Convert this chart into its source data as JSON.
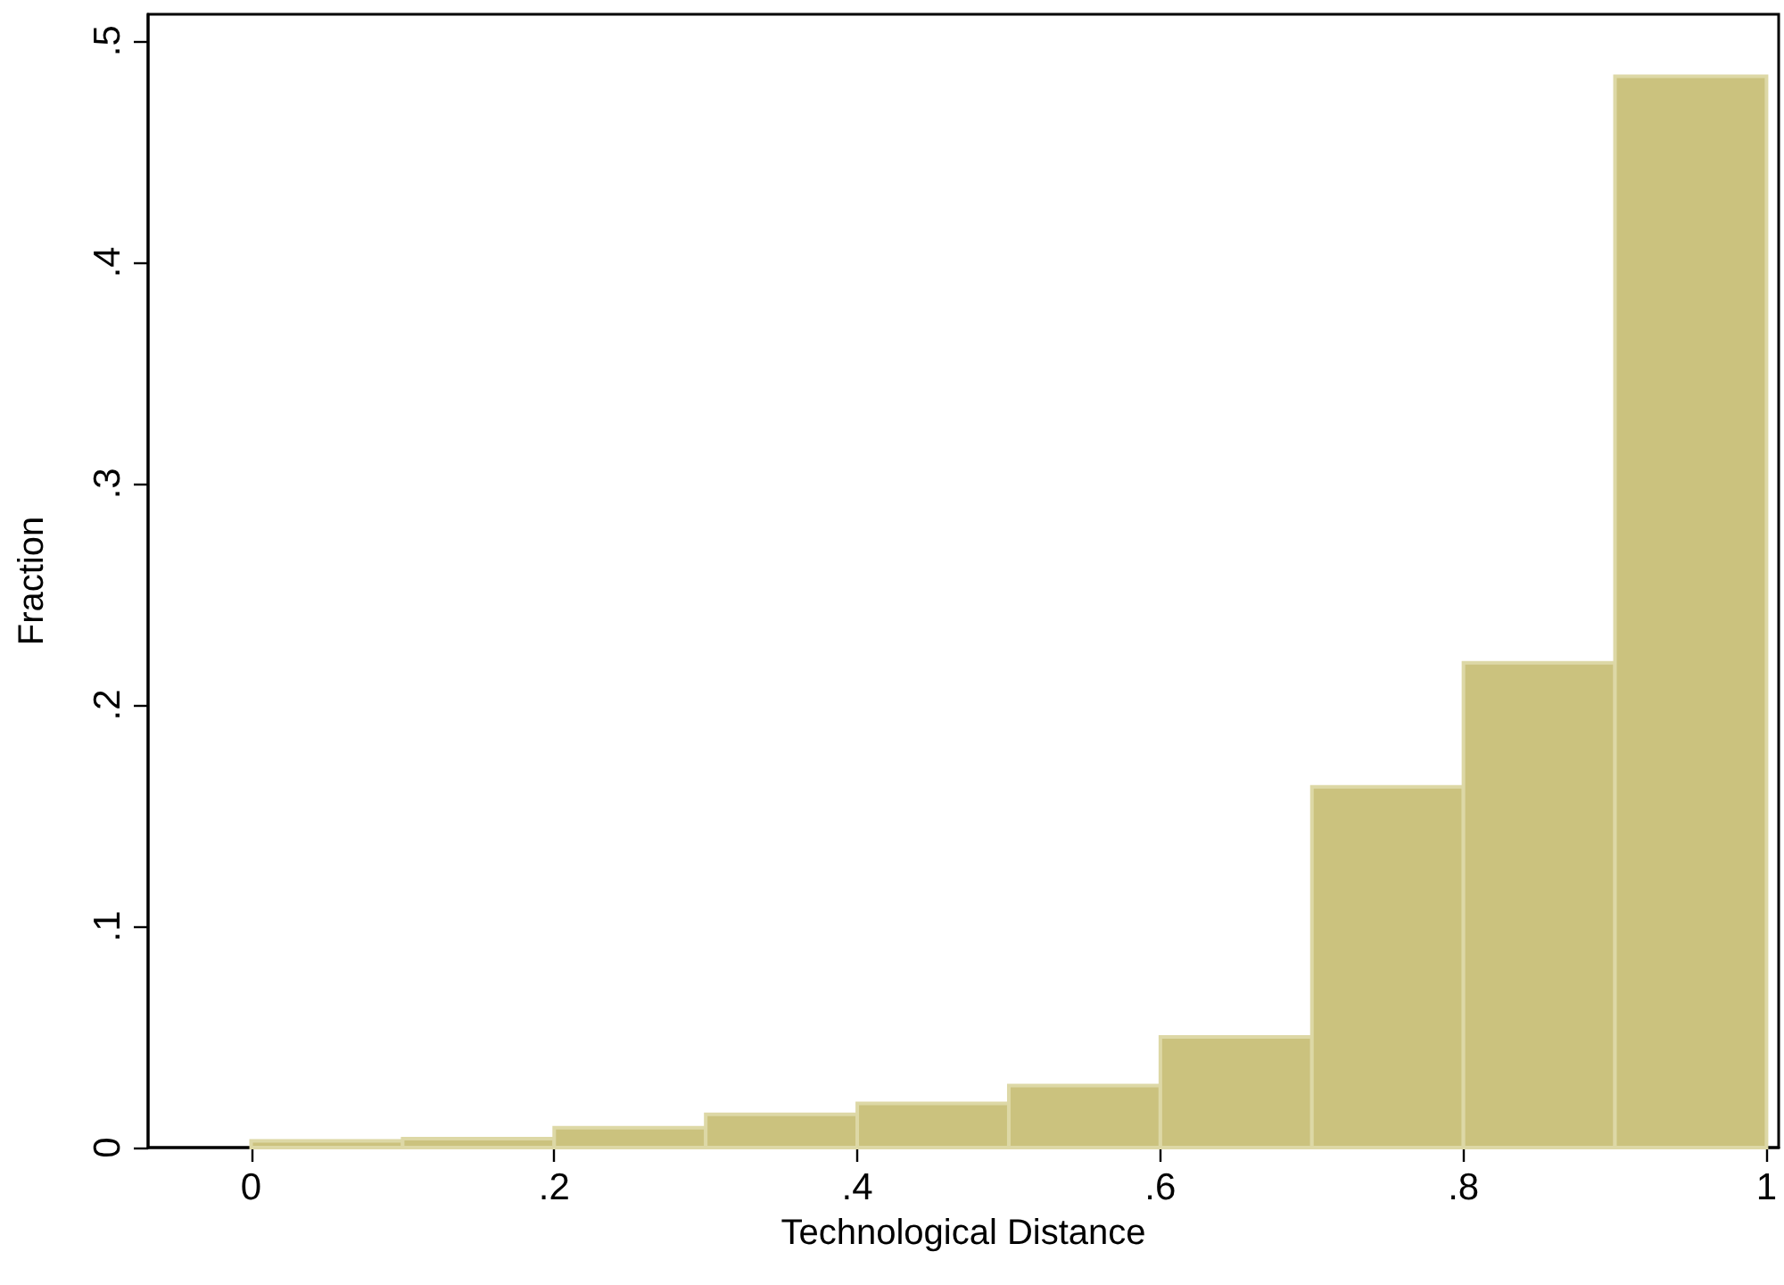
{
  "chart_data": {
    "type": "histogram",
    "xlabel": "Technological Distance",
    "ylabel": "Fraction",
    "bins": [
      0,
      0.1,
      0.2,
      0.3,
      0.4,
      0.5,
      0.6,
      0.7,
      0.8,
      0.9,
      1.0
    ],
    "values": [
      0.003,
      0.004,
      0.009,
      0.015,
      0.02,
      0.028,
      0.05,
      0.163,
      0.219,
      0.484
    ],
    "color": "#cbc27e",
    "xlim": [
      -0.068,
      1.008
    ],
    "xticks": [
      0,
      {
        "value": 0.2,
        "label": ".2"
      },
      {
        "value": 0.4,
        "label": ".4"
      },
      {
        "value": 0.6,
        "label": ".6"
      },
      {
        "value": 0.8,
        "label": ".8"
      },
      1
    ],
    "ylim": [
      0,
      0.512
    ],
    "yticks": [
      0,
      {
        "value": 0.1,
        "label": ".1"
      },
      {
        "value": 0.2,
        "label": ".2"
      },
      {
        "value": 0.3,
        "label": ".3"
      },
      {
        "value": 0.4,
        "label": ".4"
      },
      {
        "value": 0.5,
        "label": ".5"
      }
    ],
    "grid": false
  }
}
